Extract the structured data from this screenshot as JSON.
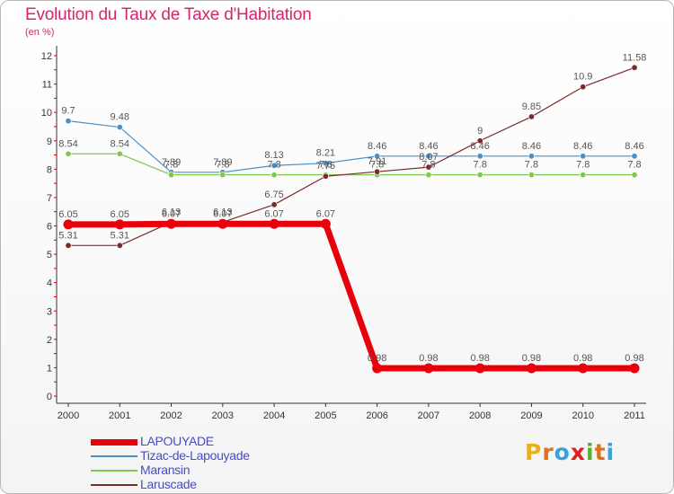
{
  "title": "Evolution du Taux de Taxe d'Habitation",
  "subtitle": "(en %)",
  "logo": {
    "text": "Proxiti",
    "letters": [
      {
        "ch": "P",
        "color": "#e8b020"
      },
      {
        "ch": "r",
        "color": "#e07020"
      },
      {
        "ch": "o",
        "color": "#3aa0d8"
      },
      {
        "ch": "x",
        "color": "#e02020"
      },
      {
        "ch": "i",
        "color": "#5ab030"
      },
      {
        "ch": "t",
        "color": "#e07020"
      },
      {
        "ch": "i",
        "color": "#3aa0d8"
      }
    ]
  },
  "chart_data": {
    "type": "line",
    "title": "Evolution du Taux de Taxe d'Habitation",
    "ylabel": "(en %)",
    "xlabel": "",
    "x": [
      "2000",
      "2001",
      "2002",
      "2003",
      "2004",
      "2005",
      "2006",
      "2007",
      "2008",
      "2009",
      "2010",
      "2011"
    ],
    "ylim": [
      0,
      12
    ],
    "yticks": [
      "0",
      "1",
      "2",
      "3",
      "4",
      "5",
      "6",
      "7",
      "8",
      "9",
      "10",
      "11",
      "12"
    ],
    "grid": false,
    "legend_position": "bottom-left",
    "series": [
      {
        "name": "LAPOUYADE",
        "color": "#e8000a",
        "values": [
          6.05,
          6.05,
          6.07,
          6.07,
          6.07,
          6.07,
          0.98,
          0.98,
          0.98,
          0.98,
          0.98,
          0.98
        ],
        "labels": [
          "6.05",
          "6.05",
          "6.07",
          "6.07",
          "6.07",
          "6.07",
          "0.98",
          "0.98",
          "0.98",
          "0.98",
          "0.98",
          "0.98"
        ]
      },
      {
        "name": "Tizac-de-Lapouyade",
        "color": "#4a90c8",
        "values": [
          9.7,
          9.48,
          7.89,
          7.89,
          8.13,
          8.21,
          8.46,
          8.46,
          8.46,
          8.46,
          8.46,
          8.46
        ],
        "labels": [
          "9.7",
          "9.48",
          "7.89",
          "7.89",
          "8.13",
          "8.21",
          "8.46",
          "8.46",
          "8.46",
          "8.46",
          "8.46",
          "8.46"
        ]
      },
      {
        "name": "Maransin",
        "color": "#7ec850",
        "values": [
          8.54,
          8.54,
          7.8,
          7.8,
          7.8,
          7.8,
          7.8,
          7.8,
          7.8,
          7.8,
          7.8,
          7.8
        ],
        "labels": [
          "8.54",
          "8.54",
          "7.8",
          "7.8",
          "7.8",
          "7.8",
          "7.8",
          "7.8",
          "7.8",
          "7.8",
          "7.8",
          "7.8"
        ]
      },
      {
        "name": "Laruscade",
        "color": "#7a2a2a",
        "values": [
          5.31,
          5.31,
          6.13,
          6.13,
          6.75,
          7.75,
          7.91,
          8.07,
          9.0,
          9.85,
          10.9,
          11.58
        ],
        "labels": [
          "5.31",
          "5.31",
          "6.13",
          "6.13",
          "6.75",
          "7.75",
          "7.91",
          "8.07",
          "9",
          "9.85",
          "10.9",
          "11.58"
        ]
      }
    ]
  }
}
